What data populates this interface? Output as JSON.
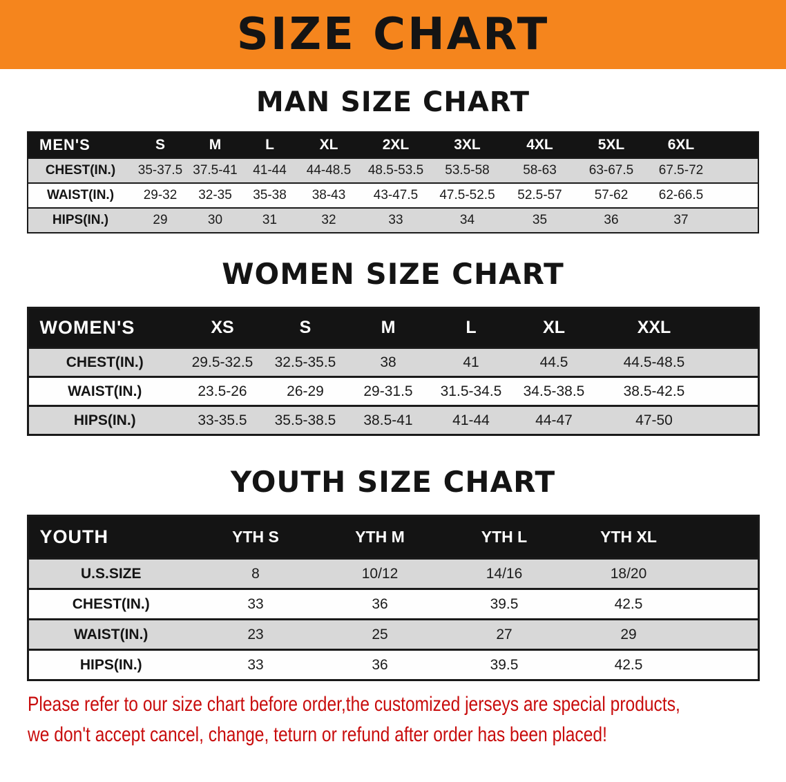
{
  "banner": {
    "title": "SIZE CHART"
  },
  "men": {
    "heading": "MAN SIZE CHART",
    "table": {
      "header": [
        "MEN'S",
        "S",
        "M",
        "L",
        "XL",
        "2XL",
        "3XL",
        "4XL",
        "5XL",
        "6XL"
      ],
      "rows": [
        [
          "CHEST(IN.)",
          "35-37.5",
          "37.5-41",
          "41-44",
          "44-48.5",
          "48.5-53.5",
          "53.5-58",
          "58-63",
          "63-67.5",
          "67.5-72"
        ],
        [
          "WAIST(IN.)",
          "29-32",
          "32-35",
          "35-38",
          "38-43",
          "43-47.5",
          "47.5-52.5",
          "52.5-57",
          "57-62",
          "62-66.5"
        ],
        [
          "HIPS(IN.)",
          "29",
          "30",
          "31",
          "32",
          "33",
          "34",
          "35",
          "36",
          "37"
        ]
      ]
    }
  },
  "women": {
    "heading": "WOMEN SIZE CHART",
    "table": {
      "header": [
        "WOMEN'S",
        "XS",
        "S",
        "M",
        "L",
        "XL",
        "XXL"
      ],
      "rows": [
        [
          "CHEST(IN.)",
          "29.5-32.5",
          "32.5-35.5",
          "38",
          "41",
          "44.5",
          "44.5-48.5"
        ],
        [
          "WAIST(IN.)",
          "23.5-26",
          "26-29",
          "29-31.5",
          "31.5-34.5",
          "34.5-38.5",
          "38.5-42.5"
        ],
        [
          "HIPS(IN.)",
          "33-35.5",
          "35.5-38.5",
          "38.5-41",
          "41-44",
          "44-47",
          "47-50"
        ]
      ]
    }
  },
  "youth": {
    "heading": "YOUTH SIZE CHART",
    "table": {
      "header": [
        "YOUTH",
        "YTH S",
        "YTH M",
        "YTH L",
        "YTH XL"
      ],
      "rows": [
        [
          "U.S.SIZE",
          "8",
          "10/12",
          "14/16",
          "18/20"
        ],
        [
          "CHEST(IN.)",
          "33",
          "36",
          "39.5",
          "42.5"
        ],
        [
          "WAIST(IN.)",
          "23",
          "25",
          "27",
          "29"
        ],
        [
          "HIPS(IN.)",
          "33",
          "36",
          "39.5",
          "42.5"
        ]
      ]
    }
  },
  "notice": {
    "line1": "Please refer to our size chart before order,the customized jerseys are special products,",
    "line2": "we don't accept cancel, change, teturn or refund after order has been placed!"
  },
  "colors": {
    "banner_bg": "#f5851d",
    "table_header_bg": "#141414",
    "row_stripe": "#d8d8d8",
    "notice_text": "#c80c0c"
  }
}
